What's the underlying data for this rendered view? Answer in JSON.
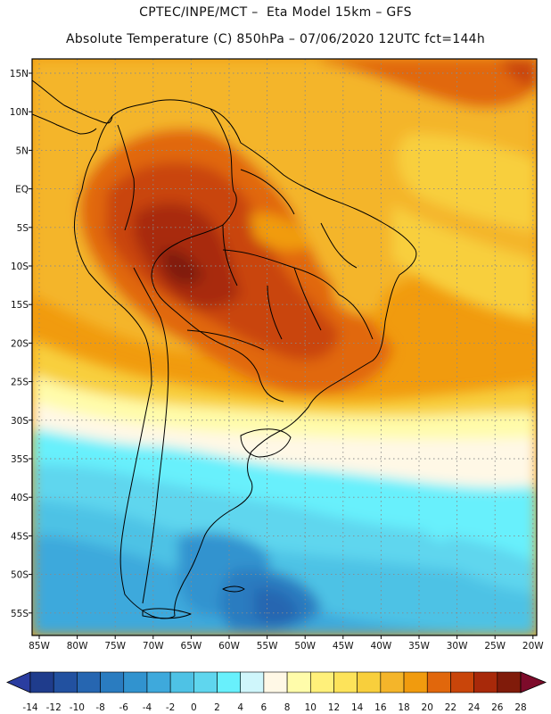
{
  "header": {
    "line1": "CPTEC/INPE/MCT –  Eta Model 15km – GFS",
    "line2": "Absolute Temperature (C) 850hPa – 07/06/2020 12UTC fct=144h"
  },
  "map": {
    "lat_labels": [
      "15N",
      "10N",
      "5N",
      "EQ",
      "5S",
      "10S",
      "15S",
      "20S",
      "25S",
      "30S",
      "35S",
      "40S",
      "45S",
      "50S",
      "55S"
    ],
    "lon_labels": [
      "85W",
      "80W",
      "75W",
      "70W",
      "65W",
      "60W",
      "55W",
      "50W",
      "45W",
      "40W",
      "35W",
      "30W",
      "25W",
      "20W"
    ]
  },
  "colorbar": {
    "ticks": [
      "-14",
      "-12",
      "-10",
      "-8",
      "-6",
      "-4",
      "-2",
      "0",
      "2",
      "4",
      "6",
      "8",
      "10",
      "12",
      "14",
      "16",
      "18",
      "20",
      "22",
      "24",
      "26",
      "28"
    ],
    "colors": [
      "#1f3c8c",
      "#2251a0",
      "#2666b1",
      "#2a7cc0",
      "#3193cf",
      "#3ea9dc",
      "#4ec2e5",
      "#5fd6ee",
      "#68f0fc",
      "#cff6fb",
      "#fff8e6",
      "#fffcaa",
      "#fff07a",
      "#fde35a",
      "#f8cf3c",
      "#f4b52a",
      "#f19b0e",
      "#e1670c",
      "#c9450a",
      "#a8290a",
      "#801b0a"
    ],
    "under_color": "#2a3da0",
    "over_color": "#7d0b2a"
  }
}
